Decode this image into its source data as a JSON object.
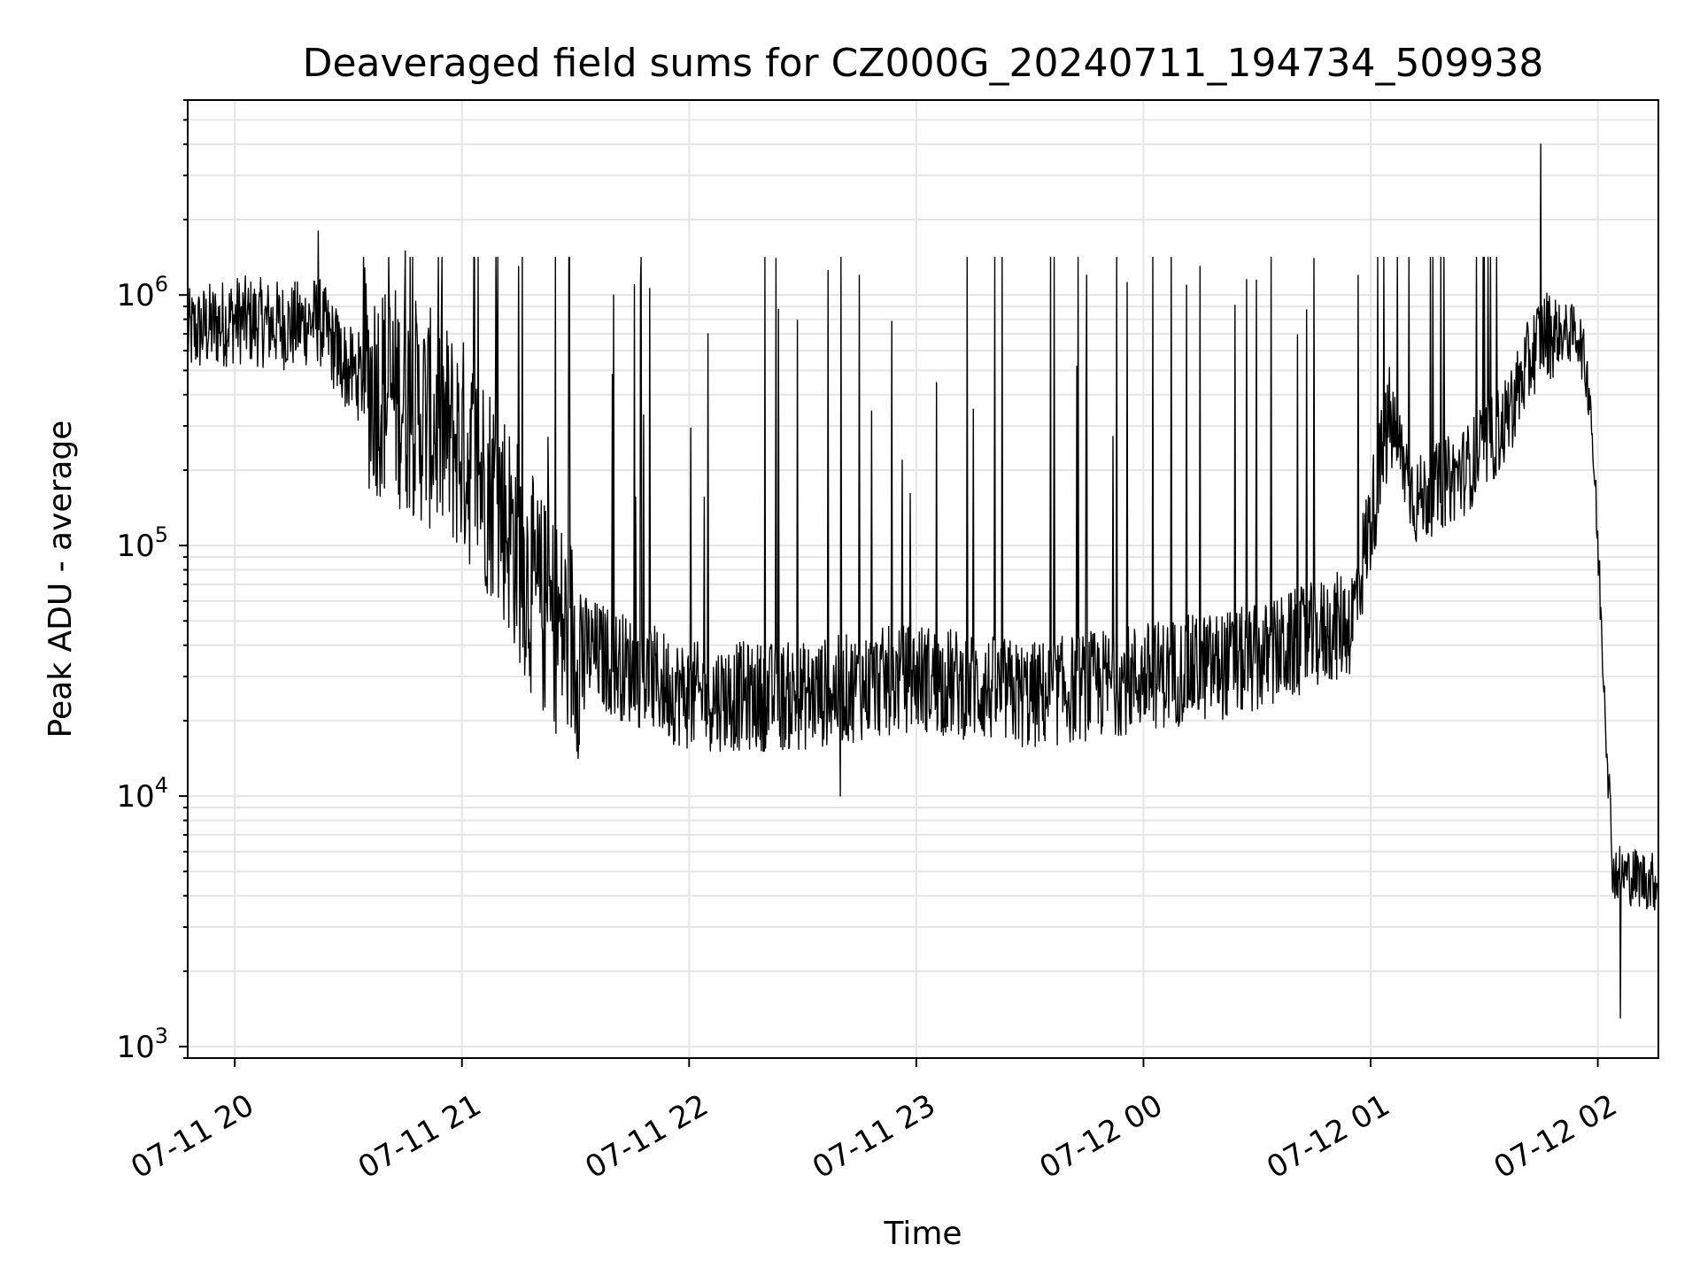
{
  "chart_data": {
    "type": "line",
    "title": "Deaveraged field sums for CZ000G_20240711_194734_509938",
    "xlabel": "Time",
    "ylabel": "Peak ADU - average",
    "yscale": "log",
    "ylim": [
      900,
      6000000
    ],
    "xlim": [
      "2024-07-11T19:47:34",
      "2024-07-12T02:16:00"
    ],
    "grid": true,
    "line_color": "#000000",
    "grid_color": "#e5e5e5",
    "x_ticks": [
      {
        "time": "2024-07-11T20:00",
        "label": "07-11 20"
      },
      {
        "time": "2024-07-11T21:00",
        "label": "07-11 21"
      },
      {
        "time": "2024-07-11T22:00",
        "label": "07-11 22"
      },
      {
        "time": "2024-07-11T23:00",
        "label": "07-11 23"
      },
      {
        "time": "2024-07-12T00:00",
        "label": "07-12 00"
      },
      {
        "time": "2024-07-12T01:00",
        "label": "07-12 01"
      },
      {
        "time": "2024-07-12T02:00",
        "label": "07-12 02"
      }
    ],
    "y_ticks": [
      {
        "value": 1000,
        "base": "10",
        "exp": "3"
      },
      {
        "value": 10000,
        "base": "10",
        "exp": "4"
      },
      {
        "value": 100000,
        "base": "10",
        "exp": "5"
      },
      {
        "value": 1000000,
        "base": "10",
        "exp": "6"
      }
    ],
    "baseline": [
      {
        "time": "2024-07-11T19:47:34",
        "y": 700000
      },
      {
        "time": "2024-07-11T20:00",
        "y": 800000
      },
      {
        "time": "2024-07-11T20:15",
        "y": 750000
      },
      {
        "time": "2024-07-11T20:22",
        "y": 800000
      },
      {
        "time": "2024-07-11T20:30",
        "y": 500000
      },
      {
        "time": "2024-07-11T20:45",
        "y": 380000
      },
      {
        "time": "2024-07-11T21:00",
        "y": 250000
      },
      {
        "time": "2024-07-11T21:10",
        "y": 150000
      },
      {
        "time": "2024-07-11T21:20",
        "y": 60000
      },
      {
        "time": "2024-07-11T21:30",
        "y": 40000
      },
      {
        "time": "2024-07-11T22:00",
        "y": 25000
      },
      {
        "time": "2024-07-11T22:30",
        "y": 25000
      },
      {
        "time": "2024-07-11T23:00",
        "y": 30000
      },
      {
        "time": "2024-07-11T23:30",
        "y": 25000
      },
      {
        "time": "2024-07-12T00:00",
        "y": 30000
      },
      {
        "time": "2024-07-12T00:30",
        "y": 35000
      },
      {
        "time": "2024-07-12T00:55",
        "y": 50000
      },
      {
        "time": "2024-07-12T01:05",
        "y": 320000
      },
      {
        "time": "2024-07-12T01:12",
        "y": 150000
      },
      {
        "time": "2024-07-12T01:25",
        "y": 200000
      },
      {
        "time": "2024-07-12T01:35",
        "y": 300000
      },
      {
        "time": "2024-07-12T01:45",
        "y": 700000
      },
      {
        "time": "2024-07-12T01:55",
        "y": 700000
      },
      {
        "time": "2024-07-12T01:58",
        "y": 400000
      },
      {
        "time": "2024-07-12T02:00",
        "y": 100000
      },
      {
        "time": "2024-07-12T02:04",
        "y": 5000
      },
      {
        "time": "2024-07-12T02:16",
        "y": 4500
      }
    ],
    "peaks": [
      {
        "time": "2024-07-11T20:22",
        "y": 1800000
      },
      {
        "time": "2024-07-11T20:45",
        "y": 1500000
      },
      {
        "time": "2024-07-11T21:15",
        "y": 1300000
      },
      {
        "time": "2024-07-11T21:40",
        "y": 1000000
      },
      {
        "time": "2024-07-11T22:05",
        "y": 700000
      },
      {
        "time": "2024-07-11T22:23",
        "y": 1400000
      },
      {
        "time": "2024-07-11T22:45",
        "y": 1200000
      },
      {
        "time": "2024-07-11T23:15",
        "y": 350000
      },
      {
        "time": "2024-07-11T23:45",
        "y": 1200000
      },
      {
        "time": "2024-07-12T00:15",
        "y": 1300000
      },
      {
        "time": "2024-07-12T00:45",
        "y": 1400000
      },
      {
        "time": "2024-07-12T01:45",
        "y": 4000000
      },
      {
        "time": "2024-07-12T02:06",
        "y": 1300
      },
      {
        "time": "2024-07-11T22:40",
        "y": 10000
      }
    ]
  }
}
